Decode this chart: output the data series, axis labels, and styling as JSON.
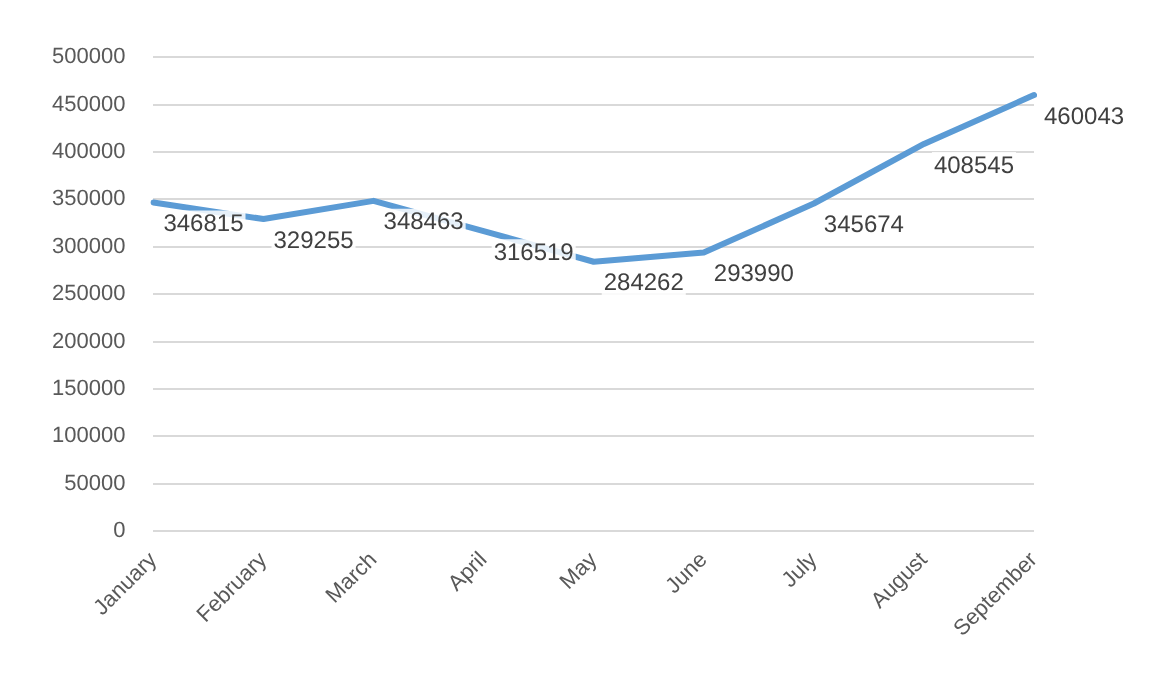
{
  "chart_data": {
    "type": "line",
    "categories": [
      "January",
      "February",
      "March",
      "April",
      "May",
      "June",
      "July",
      "August",
      "September"
    ],
    "series": [
      {
        "color": "#5b9bd5",
        "values": [
          346815,
          329255,
          348463,
          316519,
          284262,
          293990,
          345674,
          408545,
          460043
        ]
      }
    ],
    "ylim": [
      0,
      500000
    ],
    "yticks": [
      0,
      50000,
      100000,
      150000,
      200000,
      250000,
      300000,
      350000,
      400000,
      450000,
      500000
    ],
    "grid": "y",
    "legend": false,
    "data_labels": true,
    "marker": "none",
    "line_style": "solid"
  }
}
